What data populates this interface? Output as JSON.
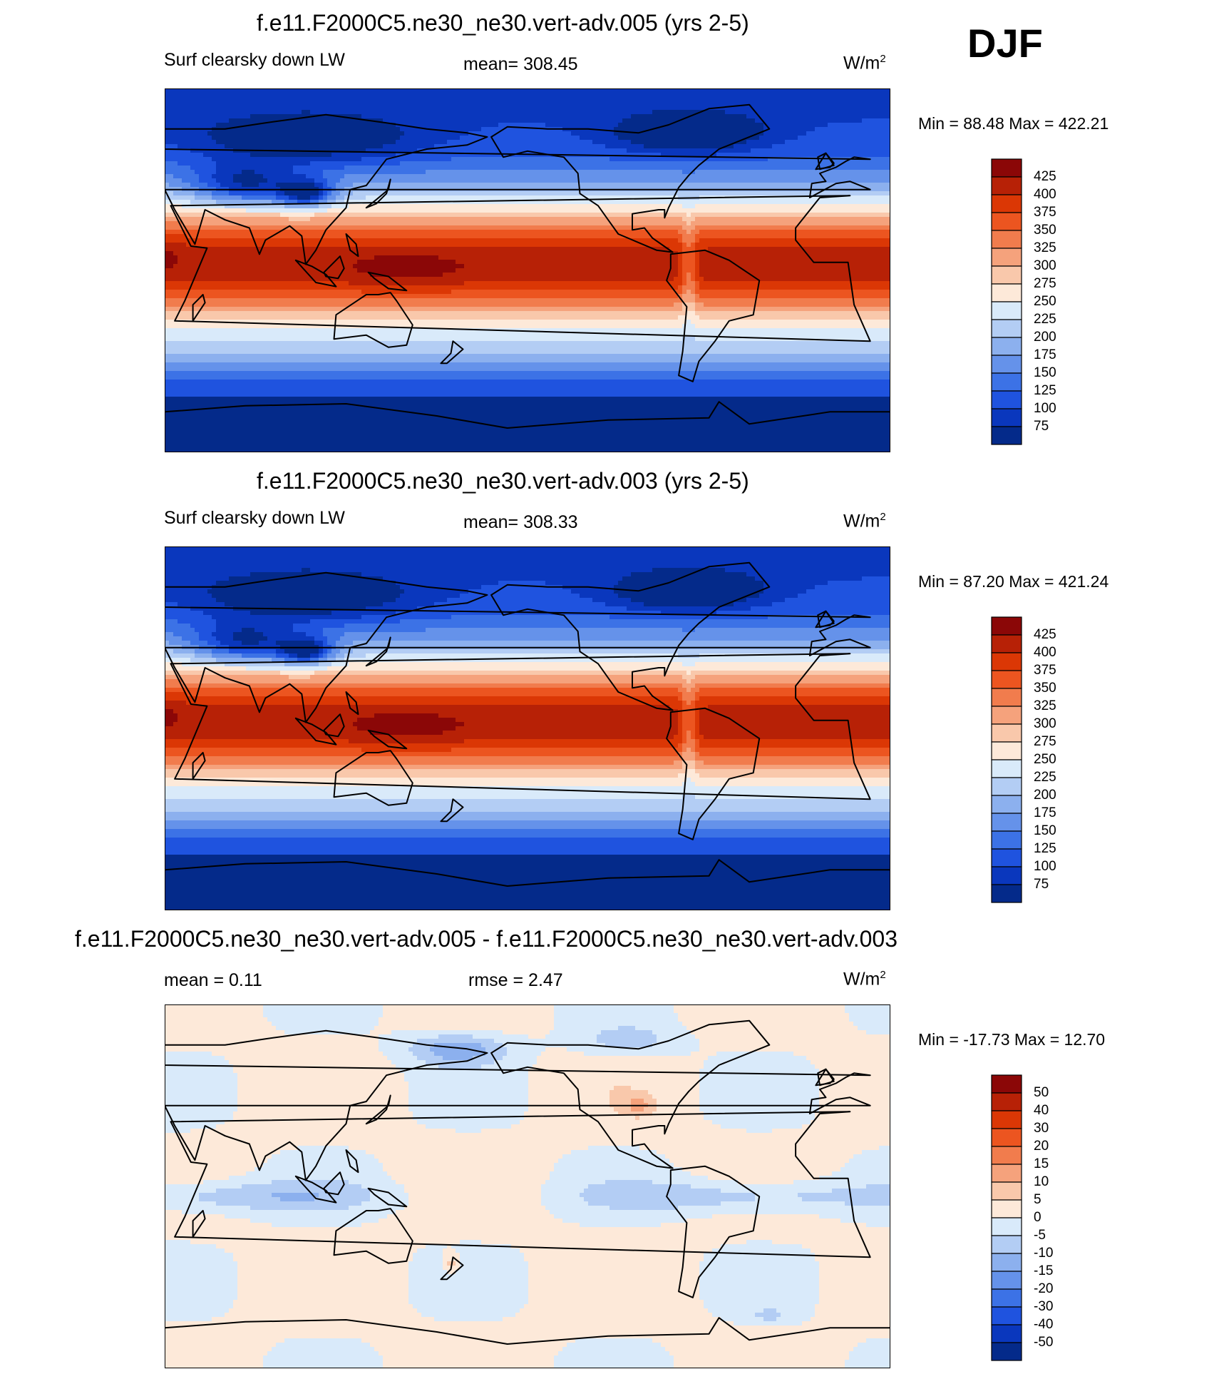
{
  "season": "DJF",
  "chart_data": [
    {
      "type": "heatmap",
      "title": "f.e11.F2000C5.ne30_ne30.vert-adv.005 (yrs 2-5)",
      "variable": "Surf clearsky down LW",
      "stat_text": "mean= 308.45",
      "units_base": "W/m",
      "units_exp": "2",
      "minmax_text": "Min =  88.48 Max = 422.21",
      "min": 88.48,
      "max": 422.21,
      "mean": 308.45,
      "levels": [
        "425",
        "400",
        "375",
        "350",
        "325",
        "300",
        "275",
        "250",
        "225",
        "200",
        "175",
        "150",
        "125",
        "100",
        "75"
      ],
      "colors": [
        "#8b0707",
        "#b72106",
        "#db3705",
        "#ec5520",
        "#f17c4d",
        "#f5a27c",
        "#f9c8ab",
        "#fde9d9",
        "#d9eafa",
        "#b3cdf4",
        "#8cb0ee",
        "#6592ea",
        "#3c72e6",
        "#1f53df",
        "#0a37bd",
        "#042a8a"
      ],
      "field": "control"
    },
    {
      "type": "heatmap",
      "title": "f.e11.F2000C5.ne30_ne30.vert-adv.003 (yrs 2-5)",
      "variable": "Surf clearsky down LW",
      "stat_text": "mean= 308.33",
      "units_base": "W/m",
      "units_exp": "2",
      "minmax_text": "Min =  87.20 Max = 421.24",
      "min": 87.2,
      "max": 421.24,
      "mean": 308.33,
      "levels": [
        "425",
        "400",
        "375",
        "350",
        "325",
        "300",
        "275",
        "250",
        "225",
        "200",
        "175",
        "150",
        "125",
        "100",
        "75"
      ],
      "colors": [
        "#8b0707",
        "#b72106",
        "#db3705",
        "#ec5520",
        "#f17c4d",
        "#f5a27c",
        "#f9c8ab",
        "#fde9d9",
        "#d9eafa",
        "#b3cdf4",
        "#8cb0ee",
        "#6592ea",
        "#3c72e6",
        "#1f53df",
        "#0a37bd",
        "#042a8a"
      ],
      "field": "control"
    },
    {
      "type": "heatmap",
      "title": "f.e11.F2000C5.ne30_ne30.vert-adv.005 - f.e11.F2000C5.ne30_ne30.vert-adv.003",
      "variable": "",
      "stat_left_text": "mean =   0.11",
      "stat_text": "rmse =   2.47",
      "units_base": "W/m",
      "units_exp": "2",
      "minmax_text": "Min = -17.73 Max =  12.70",
      "min": -17.73,
      "max": 12.7,
      "mean": 0.11,
      "rmse": 2.47,
      "levels": [
        "50",
        "40",
        "30",
        "20",
        "15",
        "10",
        "5",
        "0",
        "-5",
        "-10",
        "-15",
        "-20",
        "-30",
        "-40",
        "-50"
      ],
      "colors": [
        "#8b0707",
        "#b72106",
        "#db3705",
        "#ec5520",
        "#f17c4d",
        "#f5a27c",
        "#f9c8ab",
        "#fde9d9",
        "#d9eafa",
        "#b3cdf4",
        "#8cb0ee",
        "#6592ea",
        "#3c72e6",
        "#1f53df",
        "#0a37bd",
        "#042a8a"
      ],
      "field": "diff"
    }
  ]
}
